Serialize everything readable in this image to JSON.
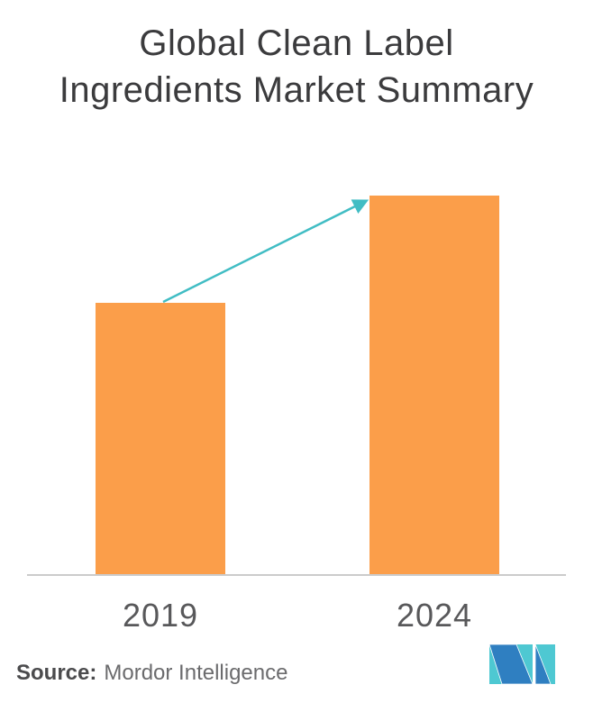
{
  "title": "Global Clean Label\nIngredients Market Summary",
  "chart_data": {
    "type": "bar",
    "title": "Global Clean Label Ingredients Market Summary",
    "categories": [
      "2019",
      "2024"
    ],
    "values": [
      302,
      421
    ],
    "value_units": "relative-height (no numeric axis shown)",
    "xlabel": "",
    "ylabel": "",
    "grid": false,
    "legend": false,
    "y_axis_visible": false,
    "x_axis_baseline_only": true,
    "bar_color": "#fb9e4a",
    "annotations": [
      {
        "type": "growth-arrow",
        "from_category": "2019",
        "to_category": "2024",
        "color": "#41bdc4"
      }
    ]
  },
  "colors": {
    "background": "#ffffff",
    "bar": "#fb9e4a",
    "arrow": "#41bdc4",
    "axis_line": "#cbcbcb",
    "title_text": "#3b3b3d",
    "tick_text": "#58585a",
    "source_label_text": "#4b4b4d",
    "source_text": "#6b6b6d",
    "logo_teal": "#4ec8d2",
    "logo_blue": "#2f7fc1"
  },
  "source": {
    "label": "Source:",
    "text": "Mordor Intelligence"
  },
  "logo": {
    "icon": "mordor-intelligence-m-logo"
  }
}
